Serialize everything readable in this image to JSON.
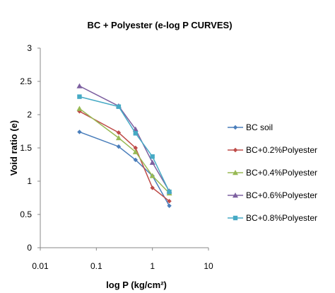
{
  "chart_data": {
    "type": "line",
    "title": "BC + Polyester (e-log P CURVES)",
    "xlabel": "log P (kg/cm²)",
    "ylabel": "Void ratio (e)",
    "x_scale": "log",
    "xlim": [
      0.01,
      10
    ],
    "ylim": [
      0,
      3
    ],
    "x_ticks": [
      0.01,
      0.1,
      1,
      10
    ],
    "x_tick_labels": [
      "0.01",
      "0.1",
      "1",
      "10"
    ],
    "y_ticks": [
      0,
      0.5,
      1,
      1.5,
      2,
      2.5,
      3
    ],
    "y_tick_labels": [
      "0",
      "0.5",
      "1",
      "1.5",
      "2",
      "2.5",
      "3"
    ],
    "grid": false,
    "legend_position": "right",
    "x": [
      0.05,
      0.25,
      0.5,
      1,
      2
    ],
    "series": [
      {
        "name": "BC soil",
        "color": "#4a7ebb",
        "marker": "diamond",
        "values": [
          1.74,
          1.52,
          1.32,
          1.08,
          0.63
        ]
      },
      {
        "name": "BC+0.2%Polyester",
        "color": "#be4b48",
        "marker": "diamond",
        "values": [
          2.05,
          1.73,
          1.5,
          0.9,
          0.7
        ]
      },
      {
        "name": "BC+0.4%Polyester",
        "color": "#98b954",
        "marker": "triangle",
        "values": [
          2.09,
          1.65,
          1.44,
          1.08,
          0.82
        ]
      },
      {
        "name": "BC+0.6%Polyester",
        "color": "#7d60a0",
        "marker": "triangle",
        "values": [
          2.43,
          2.13,
          1.78,
          1.28,
          0.85
        ]
      },
      {
        "name": "BC+0.8%Polyester",
        "color": "#46aac5",
        "marker": "square",
        "values": [
          2.27,
          2.12,
          1.72,
          1.37,
          0.84
        ]
      }
    ]
  }
}
